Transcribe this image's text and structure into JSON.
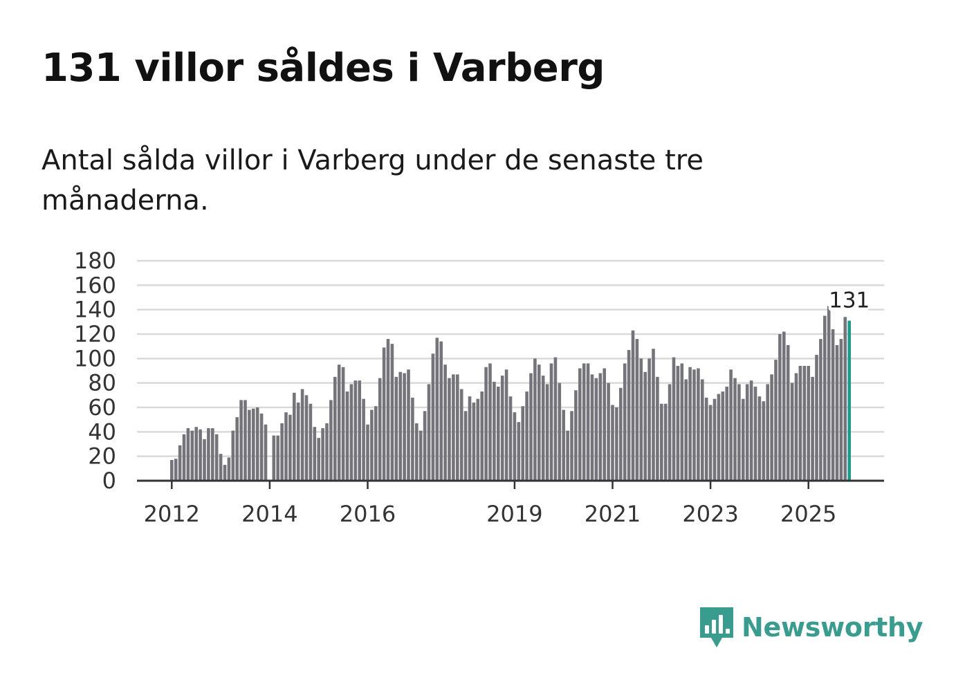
{
  "title": "131 villor såldes i Varberg",
  "subtitle": "Antal sålda villor i Varberg under de senaste tre månaderna.",
  "brand": "Newsworthy",
  "colors": {
    "bar": "#75747a",
    "highlight": "#1e9a8c",
    "grid": "#d9d9d9",
    "axis": "#333333",
    "brand": "#3a9c8e"
  },
  "chart_data": {
    "type": "bar",
    "title": "131 villor såldes i Varberg",
    "xlabel": "",
    "ylabel": "",
    "ylim": [
      0,
      180
    ],
    "yticks": [
      0,
      20,
      40,
      60,
      80,
      100,
      120,
      140,
      160,
      180
    ],
    "start": "2012-01",
    "xticks": [
      {
        "label": "2012",
        "month": "2012-01"
      },
      {
        "label": "2014",
        "month": "2014-01"
      },
      {
        "label": "2016",
        "month": "2016-01"
      },
      {
        "label": "2019",
        "month": "2019-01"
      },
      {
        "label": "2021",
        "month": "2021-01"
      },
      {
        "label": "2023",
        "month": "2023-01"
      },
      {
        "label": "2025",
        "month": "2025-01"
      }
    ],
    "annotation": {
      "label": "131",
      "value": 131
    },
    "values": [
      17,
      18,
      29,
      38,
      43,
      41,
      44,
      42,
      34,
      43,
      43,
      38,
      22,
      13,
      19,
      41,
      52,
      66,
      66,
      58,
      59,
      60,
      55,
      46,
      null,
      37,
      37,
      47,
      56,
      54,
      72,
      64,
      75,
      70,
      63,
      44,
      35,
      43,
      47,
      66,
      85,
      95,
      93,
      73,
      79,
      82,
      82,
      67,
      46,
      58,
      61,
      84,
      109,
      116,
      112,
      85,
      89,
      88,
      91,
      68,
      47,
      41,
      57,
      79,
      104,
      117,
      114,
      95,
      84,
      87,
      87,
      75,
      57,
      69,
      64,
      67,
      73,
      93,
      96,
      81,
      77,
      86,
      91,
      69,
      56,
      48,
      61,
      73,
      88,
      100,
      95,
      86,
      79,
      96,
      101,
      80,
      58,
      41,
      57,
      74,
      92,
      96,
      96,
      87,
      84,
      88,
      92,
      80,
      62,
      60,
      76,
      96,
      107,
      123,
      116,
      100,
      89,
      100,
      108,
      85,
      63,
      63,
      79,
      101,
      94,
      96,
      83,
      93,
      91,
      92,
      83,
      68,
      62,
      67,
      71,
      73,
      77,
      91,
      84,
      79,
      67,
      79,
      82,
      77,
      69,
      65,
      79,
      87,
      99,
      120,
      122,
      111,
      80,
      88,
      94,
      94,
      94,
      85,
      103,
      116,
      135,
      143,
      124,
      111,
      116,
      134,
      131
    ]
  }
}
